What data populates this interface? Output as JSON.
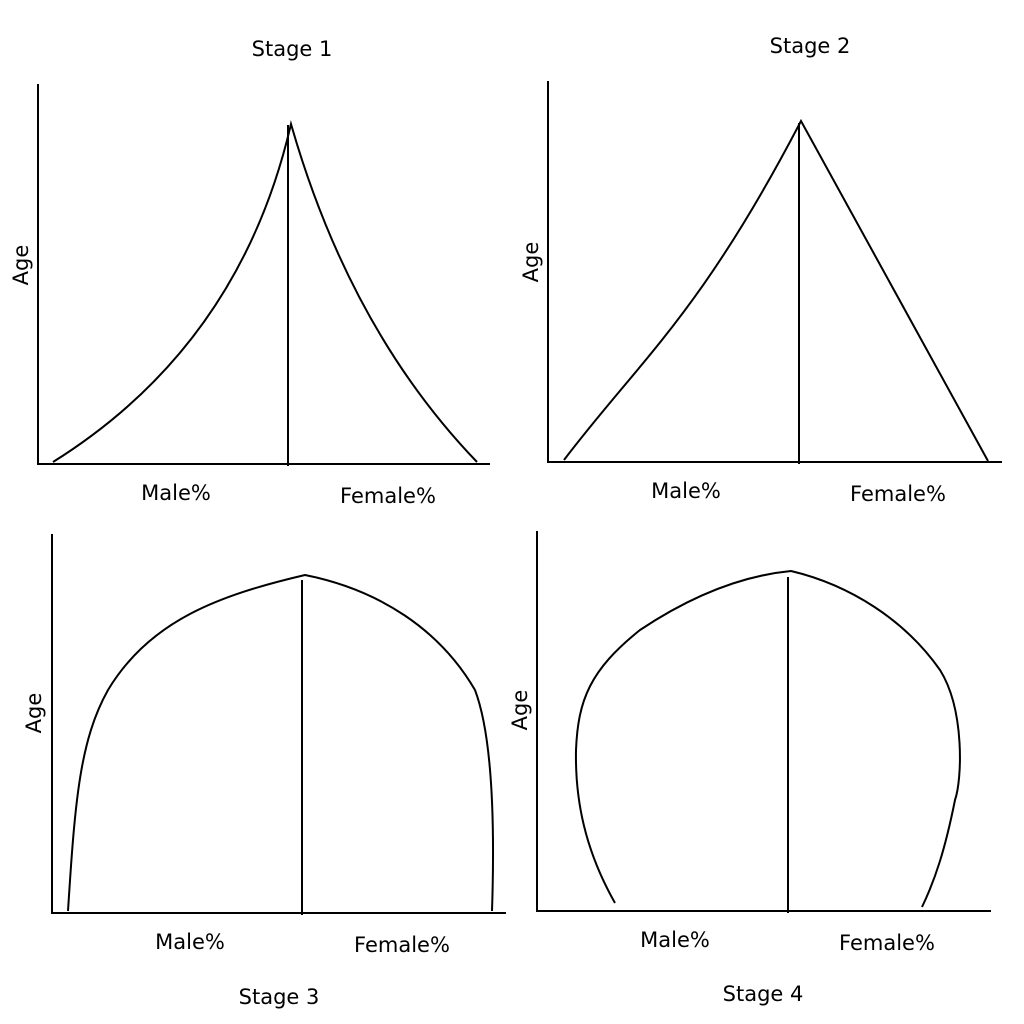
{
  "diagram": {
    "panels": [
      {
        "title": "Stage 1",
        "y_label": "Age",
        "x_left_label": "Male%",
        "x_right_label": "Female%",
        "shape": "concave pyramid"
      },
      {
        "title": "Stage 2",
        "y_label": "Age",
        "x_left_label": "Male%",
        "x_right_label": "Female%",
        "shape": "triangular pyramid"
      },
      {
        "title": "Stage 3",
        "y_label": "Age",
        "x_left_label": "Male%",
        "x_right_label": "Female%",
        "shape": "beehive"
      },
      {
        "title": "Stage 4",
        "y_label": "Age",
        "x_left_label": "Male%",
        "x_right_label": "Female%",
        "shape": "bulging / contracting"
      }
    ],
    "colors": {
      "line": "#000000",
      "background": "#ffffff"
    }
  }
}
